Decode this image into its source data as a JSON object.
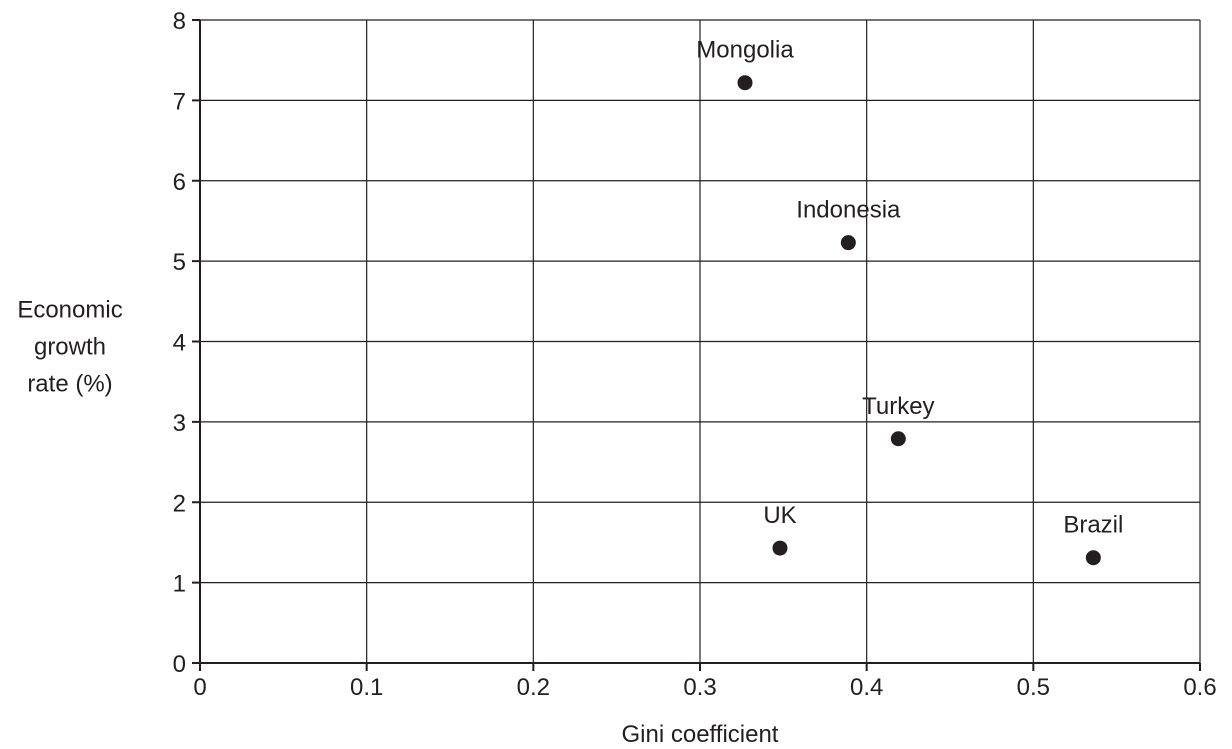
{
  "chart_data": {
    "type": "scatter",
    "title": "",
    "xlabel": "Gini coefficient",
    "ylabel": [
      "Economic",
      "growth",
      "rate (%)"
    ],
    "xlim": [
      0,
      0.6
    ],
    "ylim": [
      0,
      8
    ],
    "xticks": [
      0,
      0.1,
      0.2,
      0.3,
      0.4,
      0.5,
      0.6
    ],
    "xtick_labels": [
      "0",
      "0.1",
      "0.2",
      "0.3",
      "0.4",
      "0.5",
      "0.6"
    ],
    "yticks": [
      0,
      1,
      2,
      3,
      4,
      5,
      6,
      7,
      8
    ],
    "ytick_labels": [
      "0",
      "1",
      "2",
      "3",
      "4",
      "5",
      "6",
      "7",
      "8"
    ],
    "grid": true,
    "legend": "none",
    "marker_color": "#231f20",
    "points": [
      {
        "label": "Mongolia",
        "x": 0.327,
        "y": 7.22
      },
      {
        "label": "Indonesia",
        "x": 0.389,
        "y": 5.23
      },
      {
        "label": "Turkey",
        "x": 0.419,
        "y": 2.79
      },
      {
        "label": "UK",
        "x": 0.348,
        "y": 1.43
      },
      {
        "label": "Brazil",
        "x": 0.536,
        "y": 1.31
      }
    ]
  }
}
